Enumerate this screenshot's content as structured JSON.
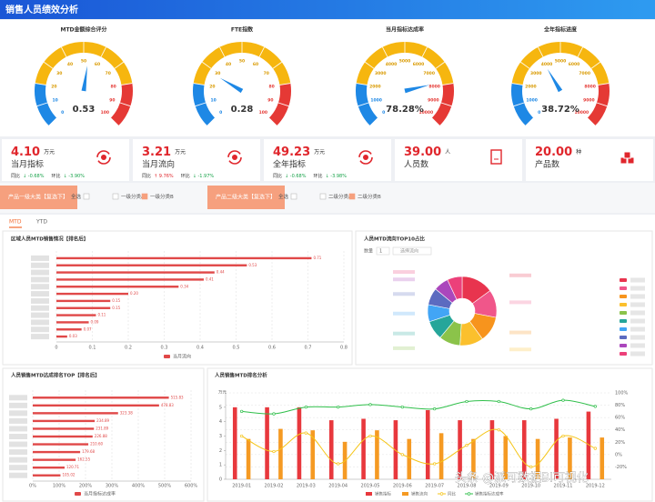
{
  "header": {
    "title": "销售人员绩效分析"
  },
  "cards": [
    {
      "value": "4.10",
      "unit": "万元",
      "label": "当月指标",
      "yoy_label": "同比",
      "yoy": "↓ -0.68%",
      "mom_label": "环比",
      "mom": "↓ -3.90%"
    },
    {
      "value": "3.21",
      "unit": "万元",
      "label": "当月流向",
      "yoy_label": "同比",
      "yoy": "↑ 9.76%",
      "mom_label": "环比",
      "mom": "↓ -1.97%"
    },
    {
      "value": "49.23",
      "unit": "万元",
      "label": "全年指标",
      "yoy_label": "同比",
      "yoy": "↓ -0.68%",
      "mom_label": "环比",
      "mom": "↓ -3.98%"
    },
    {
      "value": "39.00",
      "unit": "人",
      "label": "人员数"
    },
    {
      "value": "20.00",
      "unit": "种",
      "label": "产品数"
    }
  ],
  "filters": [
    {
      "title": "产品一级大类【复选下】",
      "options": [
        "全选",
        "一级分类A",
        "一级分类B"
      ]
    },
    {
      "title": "产品二级大类【复选下】",
      "options": [
        "全选",
        "二级分类A",
        "二级分类B"
      ]
    }
  ],
  "tabs": [
    "MTD",
    "YTD"
  ],
  "watermark": "头条 @派可数据BI可视化",
  "chart_data": [
    {
      "type": "gauge",
      "title": "MTD金额综合评分",
      "value": 0.53,
      "ylim": [
        0,
        100
      ],
      "yticks": [
        0,
        10,
        20,
        30,
        40,
        50,
        60,
        70,
        80,
        90,
        100
      ]
    },
    {
      "type": "gauge",
      "title": "FTE指数",
      "value": 0.28,
      "ylim": [
        0,
        100
      ],
      "yticks": [
        0,
        10,
        20,
        30,
        40,
        50,
        60,
        70,
        80,
        90,
        100
      ]
    },
    {
      "type": "gauge",
      "title": "当月指标达成率",
      "value": 78.28,
      "value_label": "78.28%",
      "ylim": [
        0,
        10000
      ],
      "yticks": [
        0,
        1000,
        2000,
        3000,
        4000,
        5000,
        6000,
        7000,
        8000,
        9000,
        10000
      ]
    },
    {
      "type": "gauge",
      "title": "全年指标进度",
      "value": 38.72,
      "value_label": "38.72%",
      "ylim": [
        0,
        10000
      ],
      "yticks": [
        0,
        1000,
        2000,
        3000,
        4000,
        5000,
        6000,
        7000,
        8000,
        9000,
        10000
      ]
    },
    {
      "type": "hbar",
      "title": "区域人员MTD销售情况【排名后】",
      "categories": [
        null,
        null,
        null,
        null,
        null,
        null,
        null,
        null,
        null,
        null,
        null,
        null
      ],
      "series": [
        {
          "name": "当月流向",
          "color": "#e04848",
          "values": [
            0.71,
            0.53,
            0.44,
            0.41,
            0.34,
            0.2,
            0.15,
            0.15,
            0.11,
            0.09,
            0.07,
            0.03
          ],
          "value_labels": [
            "0.71",
            "0.53",
            "0.44",
            "0.41",
            "0.34",
            "0.20",
            "0.15",
            "0.15",
            "0.11",
            "0.09",
            "0.07",
            "0.03"
          ]
        }
      ],
      "xlim": [
        0,
        0.8
      ],
      "xticks": [
        0,
        0.1,
        0.2,
        0.3,
        0.4,
        0.5,
        0.6,
        0.7,
        0.8
      ],
      "grid": true
    },
    {
      "type": "donut",
      "title": "人员MTD流向TOP10占比",
      "count_label": "数量",
      "count": "1",
      "select": "选择流向",
      "categories": [
        null,
        null,
        null,
        null,
        null,
        null,
        null,
        null,
        null,
        null
      ],
      "values": [
        15,
        13,
        12,
        11,
        10,
        9,
        8,
        8,
        7,
        7
      ],
      "colors": [
        "#e8344e",
        "#f0568a",
        "#f7941d",
        "#fbc02d",
        "#8bc34a",
        "#26a69a",
        "#42a5f5",
        "#5c6bc0",
        "#ab47bc",
        "#ec407a"
      ]
    },
    {
      "type": "hbar",
      "title": "人员销售MTD达成排名TOP【排名后】",
      "categories": [
        null,
        null,
        null,
        null,
        null,
        null,
        null,
        null,
        null,
        null,
        null
      ],
      "series": [
        {
          "name": "当月指标达成率",
          "color": "#e04848",
          "values": [
            515.83,
            478.83,
            323.38,
            234.89,
            231.89,
            226.88,
            210.6,
            179.68,
            162.55,
            120.71,
            105.02
          ],
          "value_labels": [
            "515.83",
            "478.83",
            "323.38",
            "234.89",
            "231.89",
            "226.88",
            "210.60",
            "179.68",
            "162.55",
            "120.71",
            "105.02"
          ]
        }
      ],
      "xlim": [
        0,
        600
      ],
      "xticks": [
        {
          "value": 0,
          "label": "0%"
        },
        {
          "value": 100,
          "label": "100%"
        },
        {
          "value": 200,
          "label": "200%"
        },
        {
          "value": 300,
          "label": "300%"
        },
        {
          "value": 400,
          "label": "400%"
        },
        {
          "value": 500,
          "label": "500%"
        },
        {
          "value": 600,
          "label": "600%"
        }
      ],
      "grid": true
    },
    {
      "type": "combo",
      "title": "人员销售MTD排名分析",
      "ylabel": "万元",
      "categories": [
        "2019-01",
        "2019-02",
        "2019-03",
        "2019-04",
        "2019-05",
        "2019-06",
        "2019-07",
        "2019-08",
        "2019-09",
        "2019-10",
        "2019-11",
        "2019-12"
      ],
      "series": [
        {
          "name": "销售指标",
          "kind": "bar",
          "color": "#e8383d",
          "values": [
            5,
            5,
            5,
            4.1,
            4.2,
            4.1,
            4.8,
            4.1,
            4.1,
            4.1,
            4.2,
            4.7
          ]
        },
        {
          "name": "销售流向",
          "kind": "bar",
          "color": "#f59a23",
          "values": [
            2.8,
            3.5,
            3.4,
            2.6,
            3.4,
            2.8,
            3.2,
            2.8,
            3.0,
            2.8,
            2.9,
            2.9
          ]
        },
        {
          "name": "同比",
          "kind": "line",
          "axis": "y2",
          "color": "#f5c518",
          "values": [
            30,
            5,
            35,
            -15,
            30,
            0,
            -15,
            15,
            40,
            -20,
            30,
            10
          ]
        },
        {
          "name": "销售指标达成率",
          "kind": "line",
          "axis": "y2",
          "color": "#2fbf4a",
          "values": [
            70,
            66,
            77,
            77,
            81,
            77,
            74,
            86,
            86,
            74,
            88,
            78
          ]
        }
      ],
      "ylim": [
        0,
        6
      ],
      "yticks": [
        0,
        1,
        2,
        3,
        4,
        5
      ],
      "y2lim": [
        -40,
        100
      ],
      "y2ticks": [
        {
          "value": -20,
          "label": "-20%"
        },
        {
          "value": 0,
          "label": "0%"
        },
        {
          "value": 20,
          "label": "20%"
        },
        {
          "value": 40,
          "label": "40%"
        },
        {
          "value": 60,
          "label": "60%"
        },
        {
          "value": 80,
          "label": "80%"
        },
        {
          "value": 100,
          "label": "100%"
        }
      ],
      "grid": true
    }
  ]
}
